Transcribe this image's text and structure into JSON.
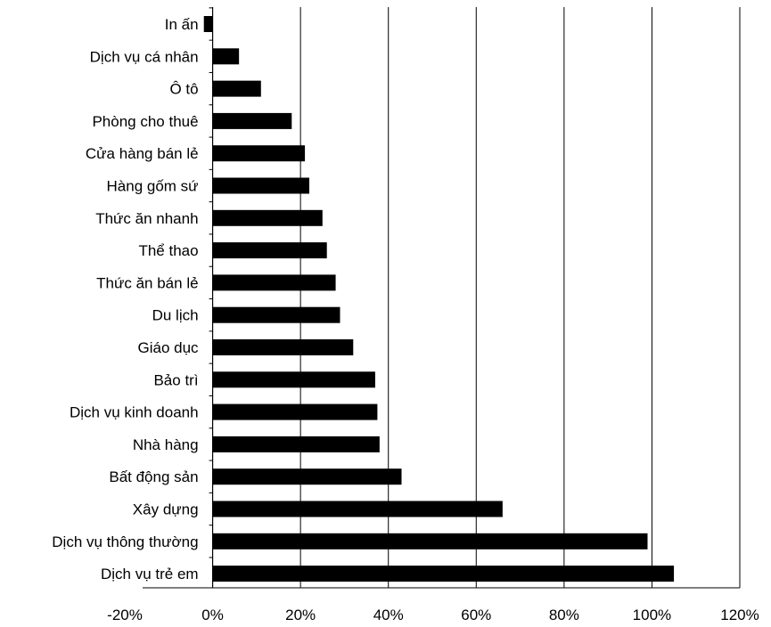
{
  "chart_data": {
    "type": "bar",
    "orientation": "horizontal",
    "title": "",
    "xlabel": "",
    "ylabel": "",
    "xlim": [
      -0.2,
      1.2
    ],
    "grid": "vertical",
    "legend": "none",
    "categories": [
      "In ấn",
      "Dịch vụ cá nhân",
      "Ô tô",
      "Phòng cho thuê",
      "Cửa hàng bán lẻ",
      "Hàng gốm sứ",
      "Thức ăn nhanh",
      "Thể thao",
      "Thức ăn bán lẻ",
      "Du lịch",
      "Giáo dục",
      "Bảo trì",
      "Dịch vụ kinh doanh",
      "Nhà hàng",
      "Bất động sản",
      "Xây dựng",
      "Dịch vụ thông thường",
      "Dịch vụ trẻ em"
    ],
    "values": [
      -0.02,
      0.06,
      0.11,
      0.18,
      0.21,
      0.22,
      0.25,
      0.26,
      0.28,
      0.29,
      0.32,
      0.37,
      0.375,
      0.38,
      0.43,
      0.66,
      0.99,
      1.05
    ],
    "x_ticks": [
      -0.2,
      0,
      0.2,
      0.4,
      0.6,
      0.8,
      1.0,
      1.2
    ],
    "x_tick_labels": [
      "-20%",
      "0%",
      "20%",
      "40%",
      "60%",
      "80%",
      "100%",
      "120%"
    ],
    "colors": {
      "bar": "#000000",
      "grid": "#000000",
      "axis": "#000000",
      "background": "#ffffff"
    }
  }
}
